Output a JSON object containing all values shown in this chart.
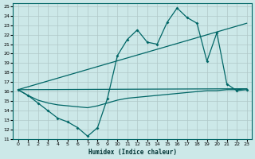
{
  "xlabel": "Humidex (Indice chaleur)",
  "bg_color": "#cce8e8",
  "grid_color": "#b8d8d8",
  "line_color": "#006666",
  "xlim": [
    -0.5,
    23.5
  ],
  "ylim": [
    11,
    25.3
  ],
  "yticks": [
    11,
    12,
    13,
    14,
    15,
    16,
    17,
    18,
    19,
    20,
    21,
    22,
    23,
    24,
    25
  ],
  "xticks": [
    0,
    1,
    2,
    3,
    4,
    5,
    6,
    7,
    8,
    9,
    10,
    11,
    12,
    13,
    14,
    15,
    16,
    17,
    18,
    19,
    20,
    21,
    22,
    23
  ],
  "jagged_main": {
    "x": [
      0,
      1,
      2,
      3,
      4,
      5,
      6,
      7,
      8,
      9,
      10,
      11,
      12,
      13,
      14,
      15,
      16,
      17,
      18,
      19,
      20,
      21,
      22,
      23
    ],
    "y": [
      16.2,
      15.6,
      14.8,
      14.0,
      13.2,
      12.8,
      12.2,
      11.3,
      12.2,
      15.3,
      19.8,
      21.5,
      22.5,
      21.2,
      21.0,
      23.3,
      24.8,
      23.8,
      23.2,
      19.2,
      22.2,
      16.8,
      16.1,
      16.2
    ]
  },
  "flat_line": {
    "x": [
      0,
      1,
      2,
      3,
      4,
      5,
      6,
      7,
      8,
      9,
      10,
      11,
      12,
      13,
      14,
      15,
      16,
      17,
      18,
      19,
      20,
      21,
      22,
      23
    ],
    "y": [
      16.2,
      15.6,
      15.1,
      14.8,
      14.6,
      14.5,
      14.4,
      14.3,
      14.5,
      14.8,
      15.1,
      15.3,
      15.4,
      15.5,
      15.6,
      15.7,
      15.8,
      15.9,
      16.0,
      16.1,
      16.1,
      16.2,
      16.2,
      16.3
    ]
  },
  "trend_upper": {
    "x": [
      0,
      23
    ],
    "y": [
      16.2,
      23.2
    ]
  },
  "trend_lower": {
    "x": [
      0,
      23
    ],
    "y": [
      16.2,
      16.3
    ]
  }
}
